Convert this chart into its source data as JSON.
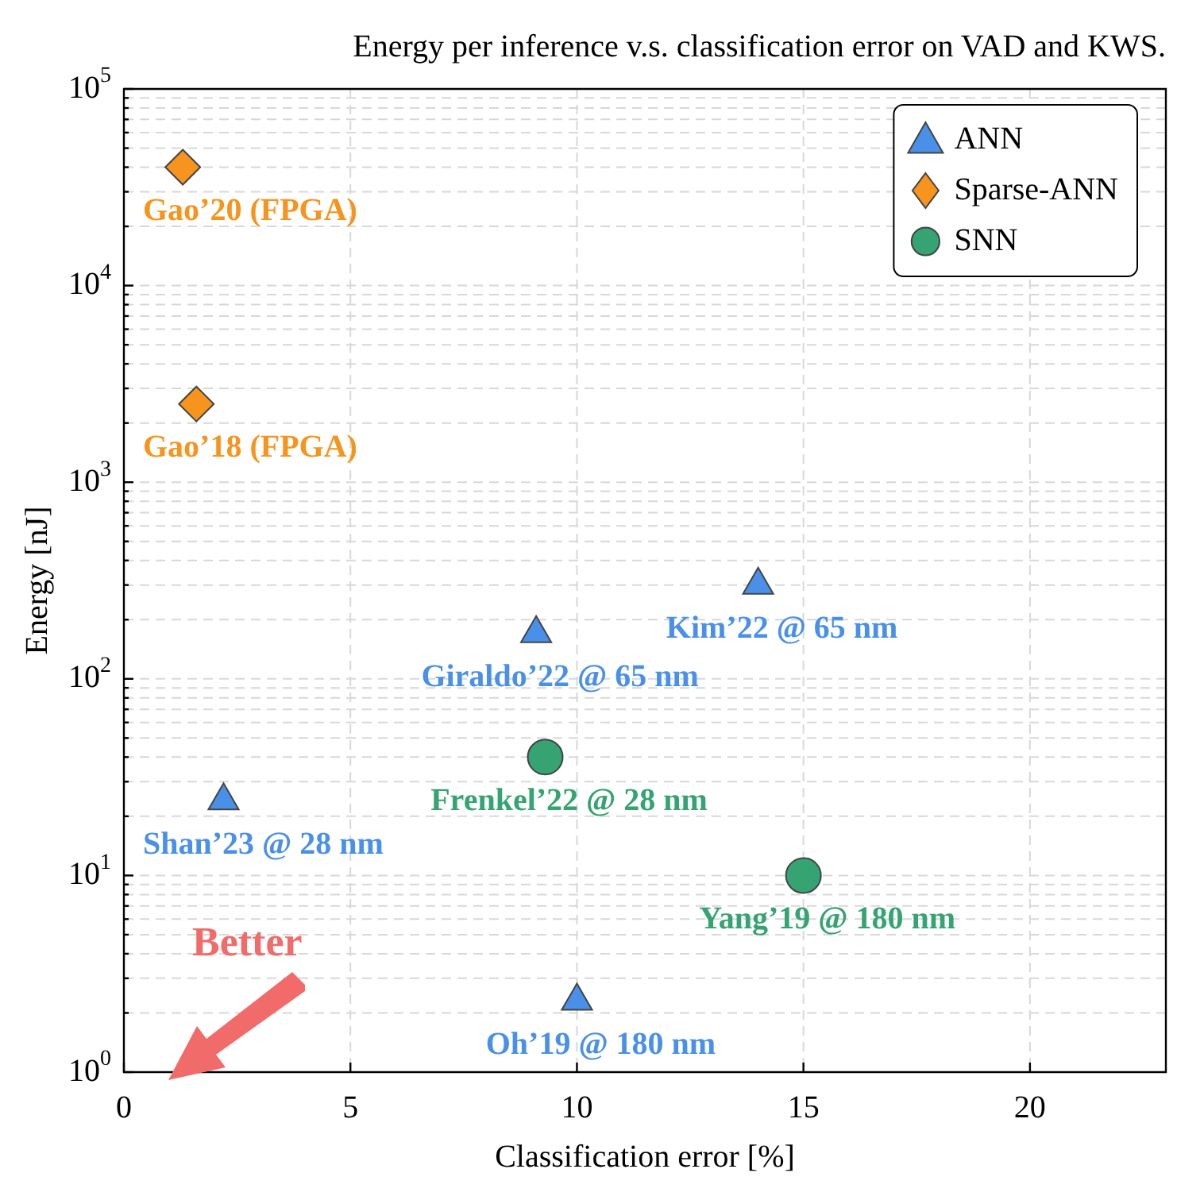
{
  "chart_data": {
    "type": "scatter",
    "title": "Energy per inference v.s. classification error on VAD and KWS.",
    "xlabel": "Classification error [%]",
    "ylabel": "Energy [nJ]",
    "xlim": [
      0,
      23
    ],
    "xticks": [
      0,
      5,
      10,
      15,
      20
    ],
    "ylim": [
      1,
      100000
    ],
    "yticks": [
      {
        "value": 1,
        "label": "10$^{0}$"
      },
      {
        "value": 10,
        "label": "10$^{1}$"
      },
      {
        "value": 100,
        "label": "10$^{2}$"
      },
      {
        "value": 1000,
        "label": "10$^{3}$"
      },
      {
        "value": 10000,
        "label": "10$^{4}$"
      },
      {
        "value": 100000,
        "label": "10$^{5}$"
      }
    ],
    "log": "y",
    "grid": true,
    "legend": "top right",
    "series": [
      {
        "name": "ANN",
        "color": "#4a90e8",
        "marker": "triangle",
        "x": [
          2.2,
          9.1,
          14,
          10
        ],
        "values": [
          24,
          170,
          300,
          2.3
        ]
      },
      {
        "name": "Sparse-ANN",
        "color": "#f7941d",
        "marker": "diamond",
        "x": [
          1.3,
          1.6
        ],
        "values": [
          40000,
          2500
        ]
      },
      {
        "name": "SNN",
        "color": "#35a372",
        "marker": "circle",
        "x": [
          9.3,
          15
        ],
        "values": [
          40,
          10
        ]
      }
    ],
    "annotations": [
      {
        "text": "Gao’20 (FPGA)",
        "x": 1.3,
        "y": 40000
      },
      {
        "text": "Gao’18 (FPGA)",
        "x": 1.6,
        "y": 2500
      },
      {
        "text": "Giraldo’22 @ 65 nm",
        "x": 9.1,
        "y": 170
      },
      {
        "text": "Kim’22 @ 65 nm",
        "x": 14,
        "y": 300
      },
      {
        "text": "Frenkel’22 @ 28 nm",
        "x": 9.3,
        "y": 40
      },
      {
        "text": "Shan’23 @ 28 nm",
        "x": 2.2,
        "y": 24
      },
      {
        "text": "Yang’19 @ 180 nm",
        "x": 15,
        "y": 10
      },
      {
        "text": "Oh’19 @ 180 nm",
        "x": 10,
        "y": 2.3
      },
      "Better"
    ]
  }
}
